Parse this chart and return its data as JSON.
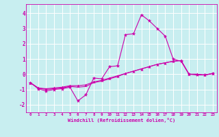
{
  "xlabel": "Windchill (Refroidissement éolien,°C)",
  "background_color": "#c8eef0",
  "grid_color": "#b0dde0",
  "line_color": "#cc00aa",
  "xlim": [
    -0.5,
    23.5
  ],
  "ylim": [
    -2.5,
    4.6
  ],
  "yticks": [
    -2,
    -1,
    0,
    1,
    2,
    3,
    4
  ],
  "xticks": [
    0,
    1,
    2,
    3,
    4,
    5,
    6,
    7,
    8,
    9,
    10,
    11,
    12,
    13,
    14,
    15,
    16,
    17,
    18,
    19,
    20,
    21,
    22,
    23
  ],
  "series1_x": [
    0,
    1,
    2,
    3,
    4,
    5,
    6,
    7,
    8,
    9,
    10,
    11,
    12,
    13,
    14,
    15,
    16,
    17,
    18,
    19,
    20,
    21,
    22,
    23
  ],
  "series1_y": [
    -0.55,
    -0.95,
    -1.1,
    -1.0,
    -0.95,
    -0.85,
    -1.75,
    -1.35,
    -0.25,
    -0.3,
    0.5,
    0.55,
    2.6,
    2.65,
    3.9,
    3.5,
    3.0,
    2.5,
    1.0,
    0.85,
    0.0,
    -0.05,
    -0.05,
    0.05
  ],
  "series2_x": [
    0,
    1,
    2,
    3,
    4,
    5,
    6,
    7,
    8,
    9,
    10,
    11,
    12,
    13,
    14,
    15,
    16,
    17,
    18,
    19,
    20,
    21,
    22,
    23
  ],
  "series2_y": [
    -0.55,
    -0.9,
    -0.95,
    -0.9,
    -0.85,
    -0.75,
    -0.75,
    -0.7,
    -0.5,
    -0.4,
    -0.25,
    -0.1,
    0.05,
    0.2,
    0.35,
    0.5,
    0.65,
    0.75,
    0.85,
    0.9,
    0.0,
    0.0,
    -0.05,
    0.05
  ],
  "series3_x": [
    0,
    1,
    2,
    3,
    4,
    5,
    6,
    7,
    8,
    9,
    10,
    11,
    12,
    13,
    14,
    15,
    16,
    17,
    18,
    19,
    20,
    21,
    22,
    23
  ],
  "series3_y": [
    -0.55,
    -0.9,
    -1.0,
    -0.95,
    -0.9,
    -0.8,
    -0.85,
    -0.8,
    -0.55,
    -0.45,
    -0.3,
    -0.15,
    0.05,
    0.2,
    0.35,
    0.5,
    0.65,
    0.75,
    0.85,
    0.9,
    0.0,
    0.0,
    -0.05,
    0.05
  ]
}
